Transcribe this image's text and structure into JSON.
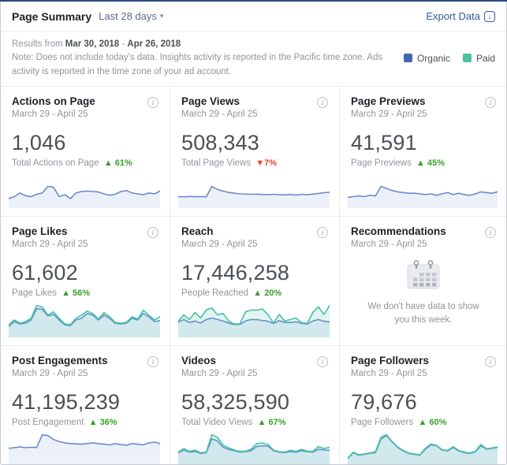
{
  "header": {
    "title": "Page Summary",
    "range_selector": "Last 28 days",
    "export_label": "Export Data"
  },
  "icons": {
    "caret": "▾",
    "download": "↓",
    "info": "i"
  },
  "note": {
    "prefix": "Results from",
    "start_date": "Mar 30, 2018",
    "separator": "-",
    "end_date": "Apr 26, 2018",
    "body": "Note: Does not include today's data. Insights activity is reported in the Pacific time zone. Ads activity is reported in the time zone of your ad account."
  },
  "legend": {
    "organic": {
      "label": "Organic",
      "color": "#4267b2"
    },
    "paid": {
      "label": "Paid",
      "color": "#4bc0a2"
    }
  },
  "cards": [
    {
      "title": "Actions on Page",
      "date_range": "March 29 - April 25",
      "value": "1,046",
      "metric_label": "Total Actions on Page",
      "delta_text": "▲ 61%",
      "delta_direction": "up"
    },
    {
      "title": "Page Views",
      "date_range": "March 29 - April 25",
      "value": "508,343",
      "metric_label": "Total Page Views",
      "delta_text": "▼7%",
      "delta_direction": "down"
    },
    {
      "title": "Page Previews",
      "date_range": "March 29 - April 25",
      "value": "41,591",
      "metric_label": "Page Previews",
      "delta_text": "▲ 45%",
      "delta_direction": "up"
    },
    {
      "title": "Page Likes",
      "date_range": "March 29 - April 25",
      "value": "61,602",
      "metric_label": "Page Likes",
      "delta_text": "▲ 56%",
      "delta_direction": "up"
    },
    {
      "title": "Reach",
      "date_range": "March 29 - April 25",
      "value": "17,446,258",
      "metric_label": "People Reached",
      "delta_text": "▲ 20%",
      "delta_direction": "up"
    },
    {
      "title": "Recommendations",
      "date_range": "March 29 - April 25",
      "message": "We don't have data to show you this week."
    },
    {
      "title": "Post Engagements",
      "date_range": "March 29 - April 25",
      "value": "41,195,239",
      "metric_label": "Post Engagement",
      "delta_text": "▲ 36%",
      "delta_direction": "up"
    },
    {
      "title": "Videos",
      "date_range": "March 29 - April 25",
      "value": "58,325,590",
      "metric_label": "Total Video Views",
      "delta_text": "▲ 67%",
      "delta_direction": "up"
    },
    {
      "title": "Page Followers",
      "date_range": "March 29 - April 25",
      "value": "79,676",
      "metric_label": "Page Followers",
      "delta_text": "▲ 60%",
      "delta_direction": "up"
    }
  ],
  "chart_data": [
    {
      "type": "area",
      "title": "Actions on Page",
      "x_range": [
        "March 29",
        "April 25"
      ],
      "legend_position": "none",
      "series": [
        {
          "name": "Total Actions on Page",
          "color": "#6d8ad0",
          "fill": "rgba(109,138,208,0.13)",
          "values": [
            18,
            22,
            30,
            24,
            22,
            27,
            30,
            44,
            42,
            22,
            26,
            18,
            30,
            33,
            34,
            33,
            32,
            28,
            25,
            27,
            33,
            35,
            30,
            28,
            26,
            30,
            28,
            34
          ]
        }
      ]
    },
    {
      "type": "area",
      "title": "Page Views",
      "x_range": [
        "March 29",
        "April 25"
      ],
      "legend_position": "none",
      "series": [
        {
          "name": "Total Page Views",
          "color": "#6d8ad0",
          "fill": "rgba(109,138,208,0.13)",
          "values": [
            120,
            118,
            122,
            119,
            121,
            118,
            240,
            205,
            185,
            170,
            160,
            152,
            150,
            148,
            150,
            146,
            142,
            148,
            144,
            140,
            146,
            138,
            148,
            142,
            150,
            158,
            166,
            172
          ]
        }
      ]
    },
    {
      "type": "area",
      "title": "Page Previews",
      "x_range": [
        "March 29",
        "April 25"
      ],
      "legend_position": "none",
      "series": [
        {
          "name": "Page Previews",
          "color": "#6d8ad0",
          "fill": "rgba(109,138,208,0.13)",
          "values": [
            14,
            15,
            16,
            15,
            17,
            16,
            30,
            27,
            24,
            22,
            21,
            20,
            20,
            19,
            18,
            19,
            17,
            19,
            21,
            18,
            20,
            18,
            17,
            19,
            22,
            21,
            20,
            22
          ]
        }
      ]
    },
    {
      "type": "area",
      "title": "Page Likes",
      "x_range": [
        "March 29",
        "April 25"
      ],
      "legend_position": "none",
      "series": [
        {
          "name": "Organic",
          "color": "#6d8ad0",
          "fill": "rgba(109,138,208,0.13)",
          "values": [
            12,
            18,
            15,
            16,
            20,
            34,
            33,
            25,
            27,
            20,
            14,
            13,
            20,
            22,
            28,
            26,
            20,
            26,
            22,
            16,
            15,
            16,
            22,
            20,
            28,
            24,
            18,
            19
          ]
        },
        {
          "name": "Paid",
          "color": "#45c1a8",
          "fill": "rgba(69,193,168,0.16)",
          "values": [
            14,
            20,
            16,
            18,
            22,
            38,
            36,
            26,
            30,
            22,
            15,
            14,
            22,
            26,
            31,
            28,
            21,
            29,
            24,
            17,
            16,
            17,
            24,
            21,
            32,
            26,
            20,
            24
          ]
        }
      ]
    },
    {
      "type": "area",
      "title": "Reach",
      "x_range": [
        "March 29",
        "April 25"
      ],
      "legend_position": "none",
      "series": [
        {
          "name": "Organic (blue)",
          "color": "#6d8ad0",
          "fill": "rgba(109,138,208,0.13)",
          "values": [
            280,
            330,
            270,
            300,
            260,
            330,
            360,
            330,
            300,
            260,
            230,
            235,
            300,
            330,
            330,
            310,
            295,
            250,
            310,
            270,
            270,
            285,
            255,
            240,
            300,
            330,
            295,
            285
          ]
        },
        {
          "name": "Paid (teal)",
          "color": "#45c1a8",
          "fill": "rgba(69,193,168,0.16)",
          "values": [
            300,
            420,
            330,
            470,
            360,
            520,
            560,
            420,
            450,
            300,
            240,
            245,
            480,
            520,
            515,
            540,
            430,
            260,
            430,
            300,
            330,
            360,
            270,
            250,
            470,
            580,
            430,
            610
          ]
        }
      ]
    },
    {
      "type": "area",
      "title": "Post Engagements",
      "x_range": [
        "March 29",
        "April 25"
      ],
      "legend_position": "none",
      "series": [
        {
          "name": "Post Engagement",
          "color": "#6d8ad0",
          "fill": "rgba(109,138,208,0.13)",
          "values": [
            500,
            520,
            540,
            520,
            530,
            525,
            900,
            870,
            760,
            700,
            660,
            640,
            630,
            620,
            640,
            660,
            640,
            620,
            600,
            640,
            610,
            590,
            640,
            620,
            600,
            660,
            680,
            640
          ]
        }
      ]
    },
    {
      "type": "area",
      "title": "Videos",
      "x_range": [
        "March 29",
        "April 25"
      ],
      "legend_position": "none",
      "series": [
        {
          "name": "Organic",
          "color": "#6d8ad0",
          "fill": "rgba(109,138,208,0.13)",
          "values": [
            900,
            1100,
            950,
            1000,
            850,
            900,
            1900,
            1750,
            1300,
            1150,
            1050,
            950,
            980,
            1050,
            1350,
            1400,
            1380,
            1050,
            950,
            900,
            1000,
            950,
            1050,
            980,
            950,
            1150,
            1100,
            1080
          ]
        },
        {
          "name": "Paid",
          "color": "#45c1a8",
          "fill": "rgba(69,193,168,0.16)",
          "values": [
            950,
            1200,
            1000,
            1100,
            900,
            950,
            2200,
            2000,
            1450,
            1250,
            1100,
            1000,
            1020,
            1150,
            1550,
            1600,
            1500,
            1100,
            980,
            950,
            1080,
            1000,
            1150,
            1020,
            1000,
            1350,
            1200,
            1300
          ]
        }
      ]
    },
    {
      "type": "area",
      "title": "Page Followers",
      "x_range": [
        "March 29",
        "April 25"
      ],
      "legend_position": "none",
      "series": [
        {
          "name": "Organic",
          "color": "#6d8ad0",
          "fill": "rgba(109,138,208,0.13)",
          "values": [
            16,
            30,
            24,
            26,
            28,
            30,
            62,
            70,
            55,
            42,
            34,
            28,
            26,
            24,
            38,
            48,
            46,
            36,
            34,
            42,
            34,
            30,
            28,
            32,
            46,
            38,
            40,
            42
          ]
        },
        {
          "name": "Paid",
          "color": "#45c1a8",
          "fill": "rgba(69,193,168,0.16)",
          "values": [
            17,
            31,
            25,
            27,
            29,
            32,
            66,
            72,
            56,
            43,
            35,
            29,
            27,
            25,
            40,
            50,
            47,
            37,
            35,
            44,
            35,
            31,
            29,
            33,
            49,
            39,
            41,
            43
          ]
        }
      ]
    }
  ]
}
